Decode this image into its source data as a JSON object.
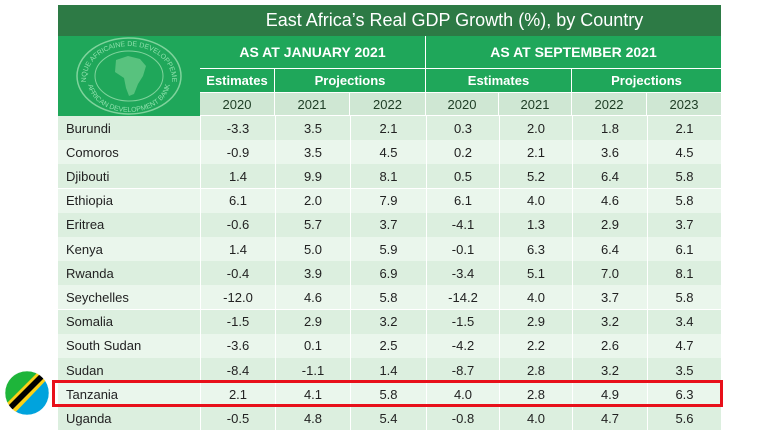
{
  "title": "East Africa’s Real GDP Growth (%), by Country",
  "logo": {
    "top_text": "BANQUE AFRICAINE DE DEVELOPPEMENT",
    "bottom_text": "AFRICAN DEVELOPMENT BANK"
  },
  "groups": [
    {
      "label": "AS AT JANUARY 2021",
      "estimates_label": "Estimates",
      "projections_label": "Projections",
      "years": [
        "2020",
        "2021",
        "2022"
      ]
    },
    {
      "label": "AS AT SEPTEMBER 2021",
      "estimates_label": "Estimates",
      "projections_label": "Projections",
      "years": [
        "2020",
        "2021",
        "2022",
        "2023"
      ]
    }
  ],
  "rows": [
    {
      "country": "Burundi",
      "values": [
        "-3.3",
        "3.5",
        "2.1",
        "0.3",
        "2.0",
        "1.8",
        "2.1"
      ]
    },
    {
      "country": "Comoros",
      "values": [
        "-0.9",
        "3.5",
        "4.5",
        "0.2",
        "2.1",
        "3.6",
        "4.5"
      ]
    },
    {
      "country": "Djibouti",
      "values": [
        "1.4",
        "9.9",
        "8.1",
        "0.5",
        "5.2",
        "6.4",
        "5.8"
      ]
    },
    {
      "country": "Ethiopia",
      "values": [
        "6.1",
        "2.0",
        "7.9",
        "6.1",
        "4.0",
        "4.6",
        "5.8"
      ]
    },
    {
      "country": "Eritrea",
      "values": [
        "-0.6",
        "5.7",
        "3.7",
        "-4.1",
        "1.3",
        "2.9",
        "3.7"
      ]
    },
    {
      "country": "Kenya",
      "values": [
        "1.4",
        "5.0",
        "5.9",
        "-0.1",
        "6.3",
        "6.4",
        "6.1"
      ]
    },
    {
      "country": "Rwanda",
      "values": [
        "-0.4",
        "3.9",
        "6.9",
        "-3.4",
        "5.1",
        "7.0",
        "8.1"
      ]
    },
    {
      "country": "Seychelles",
      "values": [
        "-12.0",
        "4.6",
        "5.8",
        "-14.2",
        "4.0",
        "3.7",
        "5.8"
      ]
    },
    {
      "country": "Somalia",
      "values": [
        "-1.5",
        "2.9",
        "3.2",
        "-1.5",
        "2.9",
        "3.2",
        "3.4"
      ]
    },
    {
      "country": "South Sudan",
      "values": [
        "-3.6",
        "0.1",
        "2.5",
        "-4.2",
        "2.2",
        "2.6",
        "4.7"
      ]
    },
    {
      "country": "Sudan",
      "values": [
        "-8.4",
        "-1.1",
        "1.4",
        "-8.7",
        "2.8",
        "3.2",
        "3.5"
      ]
    },
    {
      "country": "Tanzania",
      "values": [
        "2.1",
        "4.1",
        "5.8",
        "4.0",
        "2.8",
        "4.9",
        "6.3"
      ]
    },
    {
      "country": "Uganda",
      "values": [
        "-0.5",
        "4.8",
        "5.4",
        "-0.8",
        "4.0",
        "4.7",
        "5.6"
      ]
    }
  ],
  "highlighted_country": "Tanzania",
  "colors": {
    "title_bg": "#2d7a45",
    "header_bg": "#1fa75a",
    "subheader_bg": "#cfe7d3",
    "highlight": "#e8101a"
  },
  "flag_icon": "tanzania-flag-icon"
}
